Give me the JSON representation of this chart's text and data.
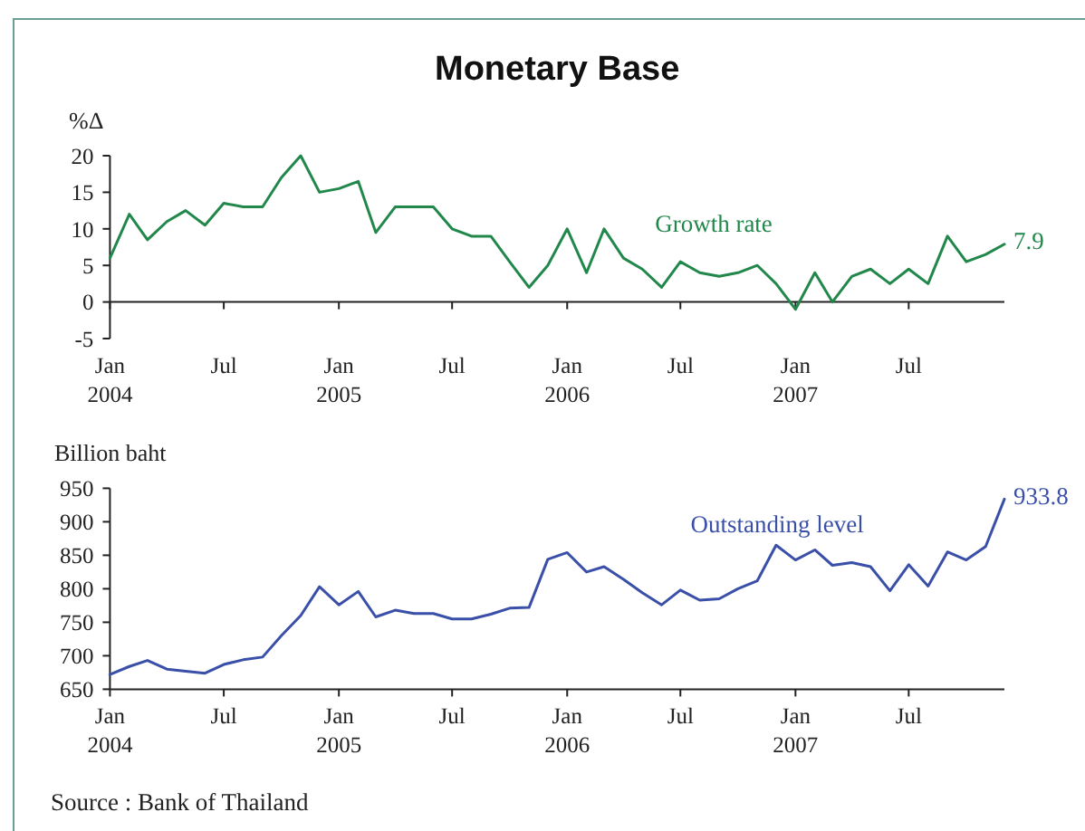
{
  "chart_data": [
    {
      "type": "line",
      "title": "Monetary Base",
      "ylabel": "%Δ",
      "x": [
        "2004-01",
        "2004-02",
        "2004-03",
        "2004-04",
        "2004-05",
        "2004-06",
        "2004-07",
        "2004-08",
        "2004-09",
        "2004-10",
        "2004-11",
        "2004-12",
        "2005-01",
        "2005-02",
        "2005-03",
        "2005-04",
        "2005-05",
        "2005-06",
        "2005-07",
        "2005-08",
        "2005-09",
        "2005-10",
        "2005-11",
        "2005-12",
        "2006-01",
        "2006-02",
        "2006-03",
        "2006-04",
        "2006-05",
        "2006-06",
        "2006-07",
        "2006-08",
        "2006-09",
        "2006-10",
        "2006-11",
        "2006-12",
        "2007-01",
        "2007-02",
        "2007-03",
        "2007-04",
        "2007-05",
        "2007-06",
        "2007-07",
        "2007-08",
        "2007-09",
        "2007-10",
        "2007-11",
        "2007-12"
      ],
      "series": [
        {
          "name": "Growth rate",
          "color": "#21874b",
          "values": [
            6,
            12,
            8.5,
            11,
            12.5,
            10.5,
            13.5,
            13,
            13,
            17,
            20,
            15,
            15.5,
            16.5,
            9.5,
            13,
            13,
            13,
            10,
            9,
            9,
            5.5,
            2,
            5,
            10,
            4,
            10,
            6,
            4.5,
            2,
            5.5,
            4,
            3.5,
            4,
            5,
            2.5,
            -1,
            4,
            0,
            3.5,
            4.5,
            2.5,
            4.5,
            2.5,
            9,
            5.5,
            6.5,
            7.9
          ],
          "value_labels": [
            null,
            null,
            null,
            null,
            null,
            null,
            null,
            null,
            null,
            null,
            null,
            null,
            null,
            null,
            null,
            null,
            null,
            null,
            null,
            null,
            null,
            null,
            null,
            null,
            null,
            null,
            null,
            null,
            null,
            null,
            null,
            null,
            null,
            null,
            null,
            null,
            null,
            null,
            null,
            null,
            null,
            null,
            null,
            null,
            null,
            null,
            null,
            "7.9"
          ]
        }
      ],
      "xlim": [
        "2004-01",
        "2007-12"
      ],
      "xticks": [
        {
          "value": "2004-01",
          "label": "Jan\n2004"
        },
        {
          "value": "2004-07",
          "label": "Jul"
        },
        {
          "value": "2005-01",
          "label": "Jan\n2005"
        },
        {
          "value": "2005-07",
          "label": "Jul"
        },
        {
          "value": "2006-01",
          "label": "Jan\n2006"
        },
        {
          "value": "2006-07",
          "label": "Jul"
        },
        {
          "value": "2007-01",
          "label": "Jan\n2007"
        },
        {
          "value": "2007-07",
          "label": "Jul"
        }
      ],
      "ylim": [
        -5,
        20
      ],
      "yticks": [
        -5,
        0,
        5,
        10,
        15,
        20
      ]
    },
    {
      "type": "line",
      "ylabel": "Billion baht",
      "x": [
        "2004-01",
        "2004-02",
        "2004-03",
        "2004-04",
        "2004-05",
        "2004-06",
        "2004-07",
        "2004-08",
        "2004-09",
        "2004-10",
        "2004-11",
        "2004-12",
        "2005-01",
        "2005-02",
        "2005-03",
        "2005-04",
        "2005-05",
        "2005-06",
        "2005-07",
        "2005-08",
        "2005-09",
        "2005-10",
        "2005-11",
        "2005-12",
        "2006-01",
        "2006-02",
        "2006-03",
        "2006-04",
        "2006-05",
        "2006-06",
        "2006-07",
        "2006-08",
        "2006-09",
        "2006-10",
        "2006-11",
        "2006-12",
        "2007-01",
        "2007-02",
        "2007-03",
        "2007-04",
        "2007-05",
        "2007-06",
        "2007-07",
        "2007-08",
        "2007-09",
        "2007-10",
        "2007-11",
        "2007-12"
      ],
      "series": [
        {
          "name": "Outstanding level",
          "color": "#3a4fa8",
          "values": [
            672,
            684,
            693,
            680,
            677,
            674,
            687,
            694,
            698,
            730,
            760,
            803,
            776,
            796,
            758,
            768,
            763,
            763,
            755,
            755,
            762,
            771,
            772,
            844,
            854,
            825,
            833,
            814,
            794,
            776,
            798,
            783,
            785,
            800,
            812,
            865,
            843,
            858,
            835,
            839,
            833,
            797,
            836,
            804,
            855,
            843,
            863,
            933.8
          ],
          "value_labels": [
            null,
            null,
            null,
            null,
            null,
            null,
            null,
            null,
            null,
            null,
            null,
            null,
            null,
            null,
            null,
            null,
            null,
            null,
            null,
            null,
            null,
            null,
            null,
            null,
            null,
            null,
            null,
            null,
            null,
            null,
            null,
            null,
            null,
            null,
            null,
            null,
            null,
            null,
            null,
            null,
            null,
            null,
            null,
            null,
            null,
            null,
            null,
            "933.8"
          ]
        }
      ],
      "xlim": [
        "2004-01",
        "2007-12"
      ],
      "xticks": [
        {
          "value": "2004-01",
          "label": "Jan\n2004"
        },
        {
          "value": "2004-07",
          "label": "Jul"
        },
        {
          "value": "2005-01",
          "label": "Jan\n2005"
        },
        {
          "value": "2005-07",
          "label": "Jul"
        },
        {
          "value": "2006-01",
          "label": "Jan\n2006"
        },
        {
          "value": "2006-07",
          "label": "Jul"
        },
        {
          "value": "2007-01",
          "label": "Jan\n2007"
        },
        {
          "value": "2007-07",
          "label": "Jul"
        }
      ],
      "ylim": [
        650,
        950
      ],
      "yticks": [
        650,
        700,
        750,
        800,
        850,
        900,
        950
      ],
      "annotations": [
        "Source : Bank of Thailand"
      ]
    }
  ]
}
